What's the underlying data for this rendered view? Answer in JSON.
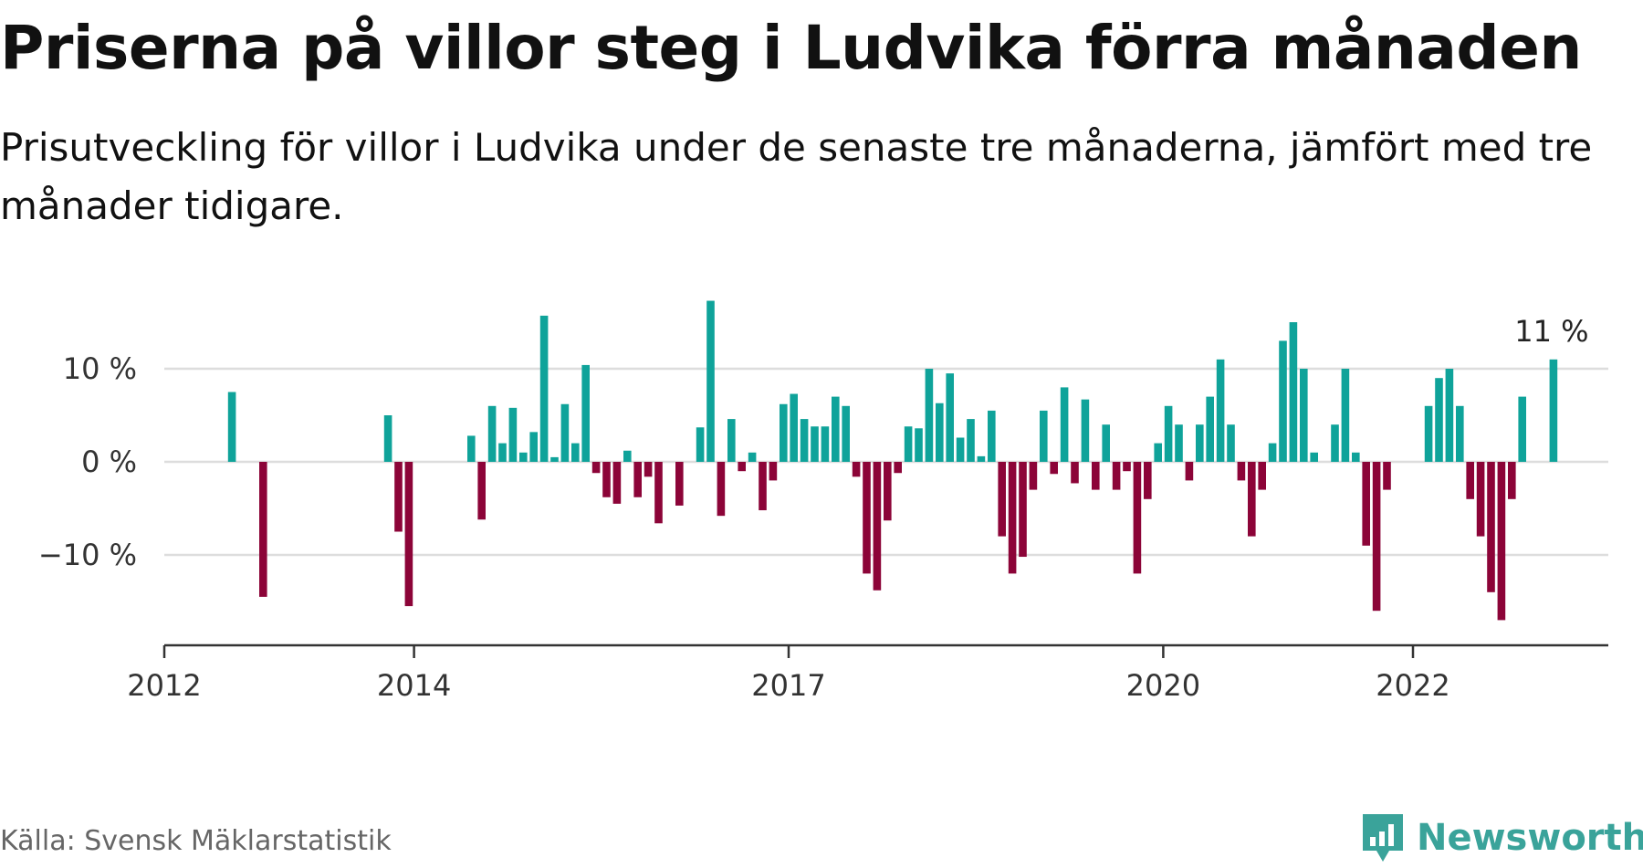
{
  "title": "Priserna på villor steg i Ludvika förra månaden",
  "subtitle": "Prisutveckling för villor i Ludvika under de senaste tre månaderna, jämfört med tre månader tidigare.",
  "source": "Källa: Svensk Mäklarstatistik",
  "brand": {
    "name": "Newsworthy",
    "icon": "bar-chart-speech-bubble-icon"
  },
  "colors": {
    "positive": "#0fa39a",
    "negative": "#8c0438",
    "grid": "#dddddd",
    "axis": "#333333",
    "brand": "#3aa39a"
  },
  "chart_data": {
    "type": "bar",
    "title": "Priserna på villor steg i Ludvika förra månaden",
    "xlabel": "",
    "ylabel": "",
    "ylim": [
      -20,
      18
    ],
    "y_ticks": [
      {
        "value": 10,
        "label": "10 %"
      },
      {
        "value": 0,
        "label": "0 %"
      },
      {
        "value": -10,
        "label": "−10 %"
      }
    ],
    "x_ticks": [
      {
        "date": "2012-01",
        "label": "2012"
      },
      {
        "date": "2014-01",
        "label": "2014"
      },
      {
        "date": "2017-01",
        "label": "2017"
      },
      {
        "date": "2020-01",
        "label": "2020"
      },
      {
        "date": "2022-01",
        "label": "2022"
      }
    ],
    "grid": true,
    "annotation": {
      "date": "2023-02",
      "label": "11 %"
    },
    "series": [
      {
        "values": [
          {
            "date": "2012-07",
            "value": 7.5
          },
          {
            "date": "2012-10",
            "value": -14.5
          },
          {
            "date": "2013-10",
            "value": 5.0
          },
          {
            "date": "2013-11",
            "value": -7.5
          },
          {
            "date": "2013-12",
            "value": -15.5
          },
          {
            "date": "2014-06",
            "value": 2.8
          },
          {
            "date": "2014-07",
            "value": -6.2
          },
          {
            "date": "2014-08",
            "value": 6.0
          },
          {
            "date": "2014-09",
            "value": 2.0
          },
          {
            "date": "2014-10",
            "value": 5.8
          },
          {
            "date": "2014-11",
            "value": 1.0
          },
          {
            "date": "2014-12",
            "value": 3.2
          },
          {
            "date": "2015-01",
            "value": 15.7
          },
          {
            "date": "2015-02",
            "value": 0.5
          },
          {
            "date": "2015-03",
            "value": 6.2
          },
          {
            "date": "2015-04",
            "value": 2.0
          },
          {
            "date": "2015-05",
            "value": 10.4
          },
          {
            "date": "2015-06",
            "value": -1.2
          },
          {
            "date": "2015-07",
            "value": -3.8
          },
          {
            "date": "2015-08",
            "value": -4.5
          },
          {
            "date": "2015-09",
            "value": 1.2
          },
          {
            "date": "2015-10",
            "value": -3.8
          },
          {
            "date": "2015-11",
            "value": -1.6
          },
          {
            "date": "2015-12",
            "value": -6.6
          },
          {
            "date": "2016-02",
            "value": -4.7
          },
          {
            "date": "2016-04",
            "value": 3.7
          },
          {
            "date": "2016-05",
            "value": 17.3
          },
          {
            "date": "2016-06",
            "value": -5.8
          },
          {
            "date": "2016-07",
            "value": 4.6
          },
          {
            "date": "2016-08",
            "value": -1.0
          },
          {
            "date": "2016-09",
            "value": 1.0
          },
          {
            "date": "2016-10",
            "value": -5.2
          },
          {
            "date": "2016-11",
            "value": -2.0
          },
          {
            "date": "2016-12",
            "value": 6.2
          },
          {
            "date": "2017-01",
            "value": 7.3
          },
          {
            "date": "2017-02",
            "value": 4.6
          },
          {
            "date": "2017-03",
            "value": 3.8
          },
          {
            "date": "2017-04",
            "value": 3.8
          },
          {
            "date": "2017-05",
            "value": 7.0
          },
          {
            "date": "2017-06",
            "value": 6.0
          },
          {
            "date": "2017-07",
            "value": -1.6
          },
          {
            "date": "2017-08",
            "value": -12.0
          },
          {
            "date": "2017-09",
            "value": -13.8
          },
          {
            "date": "2017-10",
            "value": -6.3
          },
          {
            "date": "2017-11",
            "value": -1.2
          },
          {
            "date": "2017-12",
            "value": 3.8
          },
          {
            "date": "2018-01",
            "value": 3.6
          },
          {
            "date": "2018-02",
            "value": 10.0
          },
          {
            "date": "2018-03",
            "value": 6.3
          },
          {
            "date": "2018-04",
            "value": 9.5
          },
          {
            "date": "2018-05",
            "value": 2.6
          },
          {
            "date": "2018-06",
            "value": 4.6
          },
          {
            "date": "2018-07",
            "value": 0.6
          },
          {
            "date": "2018-08",
            "value": 5.5
          },
          {
            "date": "2018-09",
            "value": -8.0
          },
          {
            "date": "2018-10",
            "value": -12.0
          },
          {
            "date": "2018-11",
            "value": -10.2
          },
          {
            "date": "2018-12",
            "value": -3.0
          },
          {
            "date": "2019-01",
            "value": 5.5
          },
          {
            "date": "2019-02",
            "value": -1.3
          },
          {
            "date": "2019-03",
            "value": 8.0
          },
          {
            "date": "2019-04",
            "value": -2.3
          },
          {
            "date": "2019-05",
            "value": 6.7
          },
          {
            "date": "2019-06",
            "value": -3.0
          },
          {
            "date": "2019-07",
            "value": 4.0
          },
          {
            "date": "2019-08",
            "value": -3.0
          },
          {
            "date": "2019-09",
            "value": -1.0
          },
          {
            "date": "2019-10",
            "value": -12.0
          },
          {
            "date": "2019-11",
            "value": -4.0
          },
          {
            "date": "2019-12",
            "value": 2.0
          },
          {
            "date": "2020-01",
            "value": 6.0
          },
          {
            "date": "2020-02",
            "value": 4.0
          },
          {
            "date": "2020-03",
            "value": -2.0
          },
          {
            "date": "2020-04",
            "value": 4.0
          },
          {
            "date": "2020-05",
            "value": 7.0
          },
          {
            "date": "2020-06",
            "value": 11.0
          },
          {
            "date": "2020-07",
            "value": 4.0
          },
          {
            "date": "2020-08",
            "value": -2.0
          },
          {
            "date": "2020-09",
            "value": -8.0
          },
          {
            "date": "2020-10",
            "value": -3.0
          },
          {
            "date": "2020-11",
            "value": 2.0
          },
          {
            "date": "2020-12",
            "value": 13.0
          },
          {
            "date": "2021-01",
            "value": 15.0
          },
          {
            "date": "2021-02",
            "value": 10.0
          },
          {
            "date": "2021-03",
            "value": 1.0
          },
          {
            "date": "2021-05",
            "value": 4.0
          },
          {
            "date": "2021-06",
            "value": 10.0
          },
          {
            "date": "2021-07",
            "value": 1.0
          },
          {
            "date": "2021-08",
            "value": -9.0
          },
          {
            "date": "2021-09",
            "value": -16.0
          },
          {
            "date": "2021-10",
            "value": -3.0
          },
          {
            "date": "2022-02",
            "value": 6.0
          },
          {
            "date": "2022-03",
            "value": 9.0
          },
          {
            "date": "2022-04",
            "value": 10.0
          },
          {
            "date": "2022-05",
            "value": 6.0
          },
          {
            "date": "2022-06",
            "value": -4.0
          },
          {
            "date": "2022-07",
            "value": -8.0
          },
          {
            "date": "2022-08",
            "value": -14.0
          },
          {
            "date": "2022-09",
            "value": -17.0
          },
          {
            "date": "2022-10",
            "value": -4.0
          },
          {
            "date": "2022-11",
            "value": 7.0
          },
          {
            "date": "2023-02",
            "value": 11.0
          }
        ]
      }
    ]
  }
}
